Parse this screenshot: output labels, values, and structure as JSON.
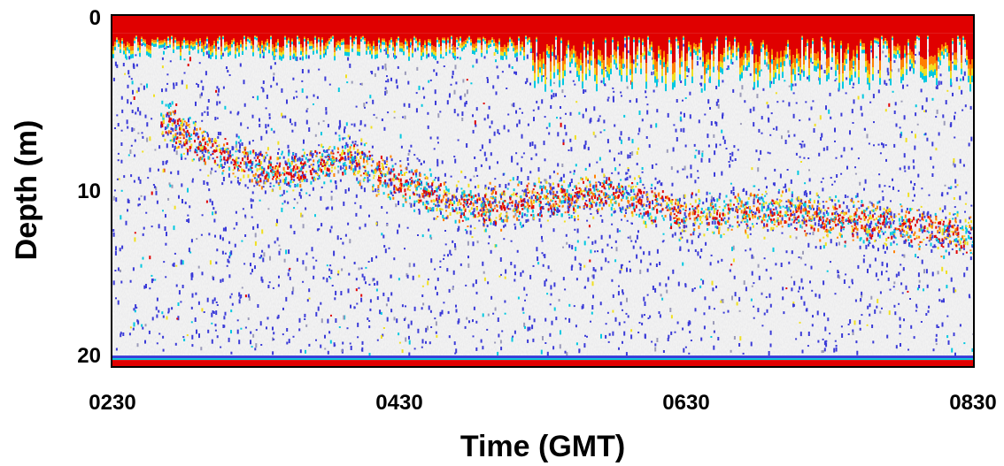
{
  "chart_data": {
    "type": "heatmap",
    "title": "",
    "xlabel": "Time (GMT)",
    "ylabel": "Depth (m)",
    "x_ticks": [
      "0230",
      "0430",
      "0630",
      "0830"
    ],
    "y_ticks": [
      "0",
      "10",
      "20"
    ],
    "x_range_gmt": [
      "0230",
      "0830"
    ],
    "ylim": [
      0,
      20
    ],
    "y_inverted": true,
    "grid": false,
    "colormap": [
      "#e6e6e6",
      "#3a3ad8",
      "#00c8e0",
      "#f0e020",
      "#ff8000",
      "#e00000"
    ],
    "features": {
      "surface_layer_depth_m": [
        0,
        1
      ],
      "bottom_layer_depth_m": [
        19.6,
        20
      ],
      "scattering_layer": {
        "time_gmt": [
          "0250",
          "0310",
          "0340",
          "0410",
          "0430",
          "0500",
          "0530",
          "0600",
          "0630",
          "0700",
          "0730",
          "0800",
          "0830"
        ],
        "depth_m": [
          6,
          7.5,
          9,
          8,
          9.5,
          11,
          10.5,
          10,
          11.5,
          11,
          11.5,
          12,
          12.5
        ]
      }
    }
  }
}
